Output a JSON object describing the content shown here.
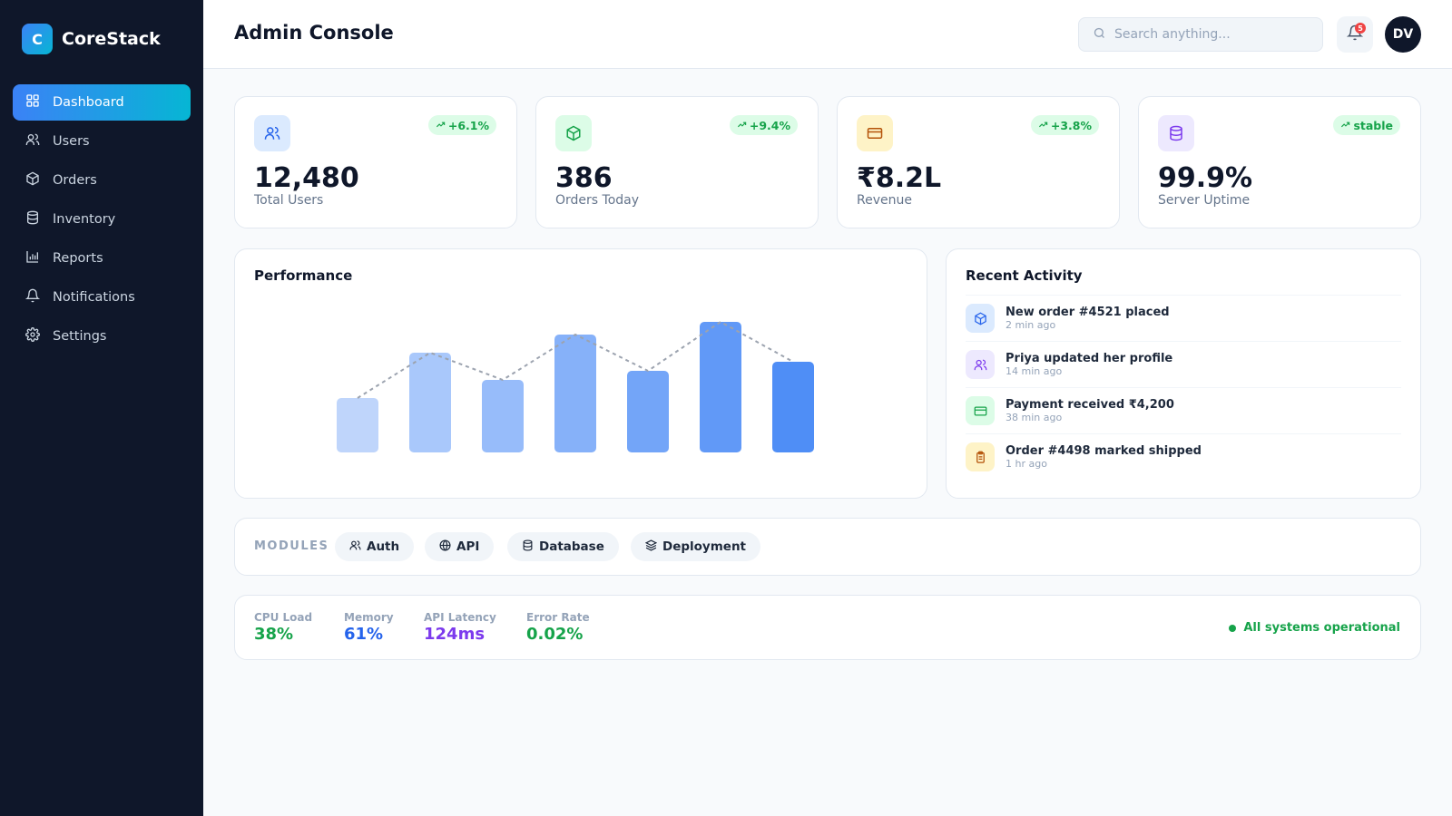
{
  "app": {
    "logo_letter": "C",
    "name": "CoreStack"
  },
  "sidebar": {
    "items": [
      {
        "label": "Dashboard",
        "icon": "grid-icon",
        "active": true
      },
      {
        "label": "Users",
        "icon": "users-icon"
      },
      {
        "label": "Orders",
        "icon": "box-icon"
      },
      {
        "label": "Inventory",
        "icon": "database-icon"
      },
      {
        "label": "Reports",
        "icon": "bar-chart-icon"
      },
      {
        "label": "Notifications",
        "icon": "bell-icon"
      },
      {
        "label": "Settings",
        "icon": "gear-icon"
      }
    ]
  },
  "header": {
    "title": "Admin Console",
    "search_placeholder": "Search anything...",
    "notification_count": "5",
    "avatar_initials": "DV"
  },
  "stats": [
    {
      "value": "12,480",
      "label": "Total Users",
      "trend": "+6.1%",
      "icon": "users-icon",
      "color": "#2563eb",
      "bg": "#dbeafe"
    },
    {
      "value": "386",
      "label": "Orders Today",
      "trend": "+9.4%",
      "icon": "box-icon",
      "color": "#16a34a",
      "bg": "#dcfce7"
    },
    {
      "value": "₹8.2L",
      "label": "Revenue",
      "trend": "+3.8%",
      "icon": "credit-card-icon",
      "color": "#b45309",
      "bg": "#fef3c7"
    },
    {
      "value": "99.9%",
      "label": "Server Uptime",
      "trend": "stable",
      "icon": "database-icon",
      "color": "#7c3aed",
      "bg": "#ede9fe"
    }
  ],
  "performance": {
    "title": "Performance",
    "chart_data": {
      "type": "bar",
      "values": [
        30,
        55,
        40,
        65,
        45,
        72,
        50
      ],
      "trend_line": true,
      "bar_colors": [
        "#bfd5fb",
        "#a9c8fb",
        "#97bcfa",
        "#86b1f9",
        "#73a5f8",
        "#6199f7",
        "#4f8ef6"
      ]
    }
  },
  "activity": {
    "title": "Recent Activity",
    "items": [
      {
        "title": "New order #4521 placed",
        "time": "2 min ago",
        "icon": "box-icon",
        "color": "#2563eb",
        "bg": "#dbeafe"
      },
      {
        "title": "Priya updated her profile",
        "time": "14 min ago",
        "icon": "users-icon",
        "color": "#7c3aed",
        "bg": "#ede9fe"
      },
      {
        "title": "Payment received ₹4,200",
        "time": "38 min ago",
        "icon": "credit-card-icon",
        "color": "#16a34a",
        "bg": "#dcfce7"
      },
      {
        "title": "Order #4498 marked shipped",
        "time": "1 hr ago",
        "icon": "clipboard-icon",
        "color": "#b45309",
        "bg": "#fef3c7"
      }
    ]
  },
  "modules": {
    "label": "MODULES",
    "chips": [
      {
        "label": "Auth",
        "icon": "users-icon"
      },
      {
        "label": "API",
        "icon": "globe-icon"
      },
      {
        "label": "Database",
        "icon": "database-icon"
      },
      {
        "label": "Deployment",
        "icon": "layers-icon"
      }
    ]
  },
  "metrics": [
    {
      "label": "CPU Load",
      "value": "38%",
      "color": "#16a34a"
    },
    {
      "label": "Memory",
      "value": "61%",
      "color": "#2563eb"
    },
    {
      "label": "API Latency",
      "value": "124ms",
      "color": "#7c3aed"
    },
    {
      "label": "Error Rate",
      "value": "0.02%",
      "color": "#16a34a"
    }
  ],
  "status": {
    "text": "All systems operational"
  }
}
